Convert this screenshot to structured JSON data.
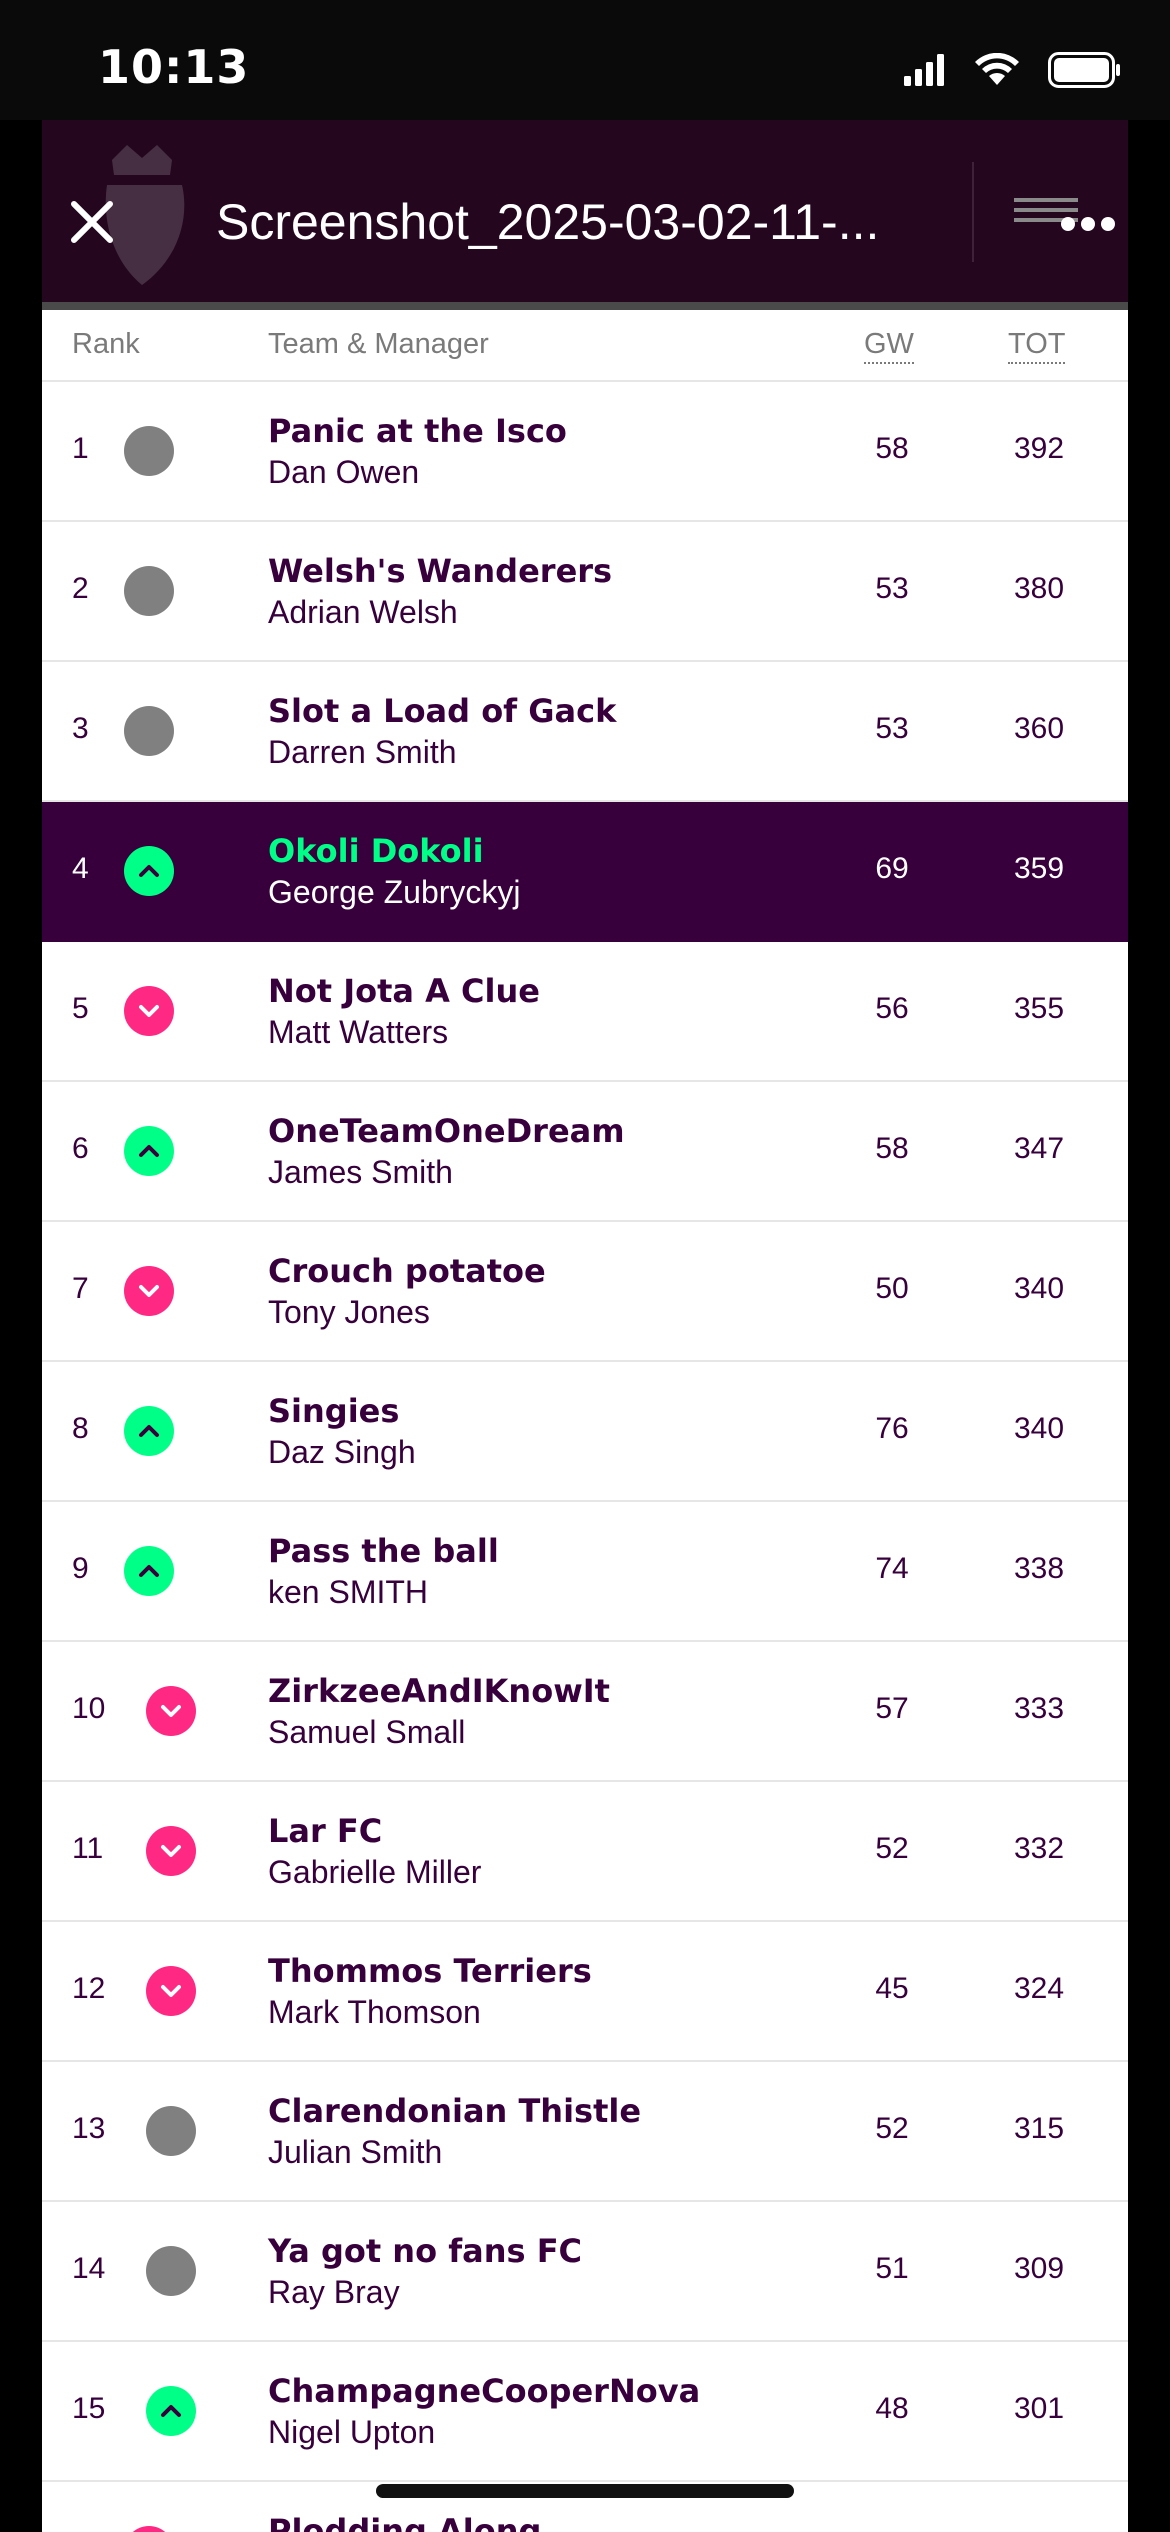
{
  "status_bar": {
    "time": "10:13"
  },
  "header": {
    "title": "Screenshot_2025-03-02-11-..."
  },
  "columns": {
    "rank": "Rank",
    "team": "Team & Manager",
    "gw": "GW",
    "tot": "TOT"
  },
  "rows": [
    {
      "rank": "1",
      "team": "Panic at the Isco",
      "manager": "Dan Owen",
      "gw": "58",
      "tot": "392",
      "movement": "same"
    },
    {
      "rank": "2",
      "team": "Welsh's Wanderers",
      "manager": "Adrian Welsh",
      "gw": "53",
      "tot": "380",
      "movement": "same"
    },
    {
      "rank": "3",
      "team": "Slot a Load of Gack",
      "manager": "Darren Smith",
      "gw": "53",
      "tot": "360",
      "movement": "same"
    },
    {
      "rank": "4",
      "team": "Okoli Dokoli",
      "manager": "George Zubryckyj",
      "gw": "69",
      "tot": "359",
      "movement": "up",
      "highlight": true
    },
    {
      "rank": "5",
      "team": "Not Jota A Clue",
      "manager": "Matt Watters",
      "gw": "56",
      "tot": "355",
      "movement": "down"
    },
    {
      "rank": "6",
      "team": "OneTeamOneDream",
      "manager": "James Smith",
      "gw": "58",
      "tot": "347",
      "movement": "up"
    },
    {
      "rank": "7",
      "team": "Crouch potatoe",
      "manager": "Tony Jones",
      "gw": "50",
      "tot": "340",
      "movement": "down"
    },
    {
      "rank": "8",
      "team": "Singies",
      "manager": "Daz Singh",
      "gw": "76",
      "tot": "340",
      "movement": "up"
    },
    {
      "rank": "9",
      "team": "Pass the ball",
      "manager": "ken SMITH",
      "gw": "74",
      "tot": "338",
      "movement": "up"
    },
    {
      "rank": "10",
      "team": "ZirkzeeAndIKnowIt",
      "manager": "Samuel Small",
      "gw": "57",
      "tot": "333",
      "movement": "down"
    },
    {
      "rank": "11",
      "team": "Lar FC",
      "manager": "Gabrielle Miller",
      "gw": "52",
      "tot": "332",
      "movement": "down"
    },
    {
      "rank": "12",
      "team": "Thommos Terriers",
      "manager": "Mark Thomson",
      "gw": "45",
      "tot": "324",
      "movement": "down"
    },
    {
      "rank": "13",
      "team": "Clarendonian Thistle",
      "manager": "Julian Smith",
      "gw": "52",
      "tot": "315",
      "movement": "same"
    },
    {
      "rank": "14",
      "team": "Ya got no fans FC",
      "manager": "Ray Bray",
      "gw": "51",
      "tot": "309",
      "movement": "same"
    },
    {
      "rank": "15",
      "team": "ChampagneCooperNova",
      "manager": "Nigel Upton",
      "gw": "48",
      "tot": "301",
      "movement": "up"
    },
    {
      "rank": "",
      "team": "Plodding Along",
      "manager": "",
      "gw": "",
      "tot": "",
      "movement": "down"
    }
  ],
  "colors": {
    "purple": "#37003c",
    "green": "#00ff87",
    "pink": "#ff2882",
    "grey": "#808080"
  }
}
